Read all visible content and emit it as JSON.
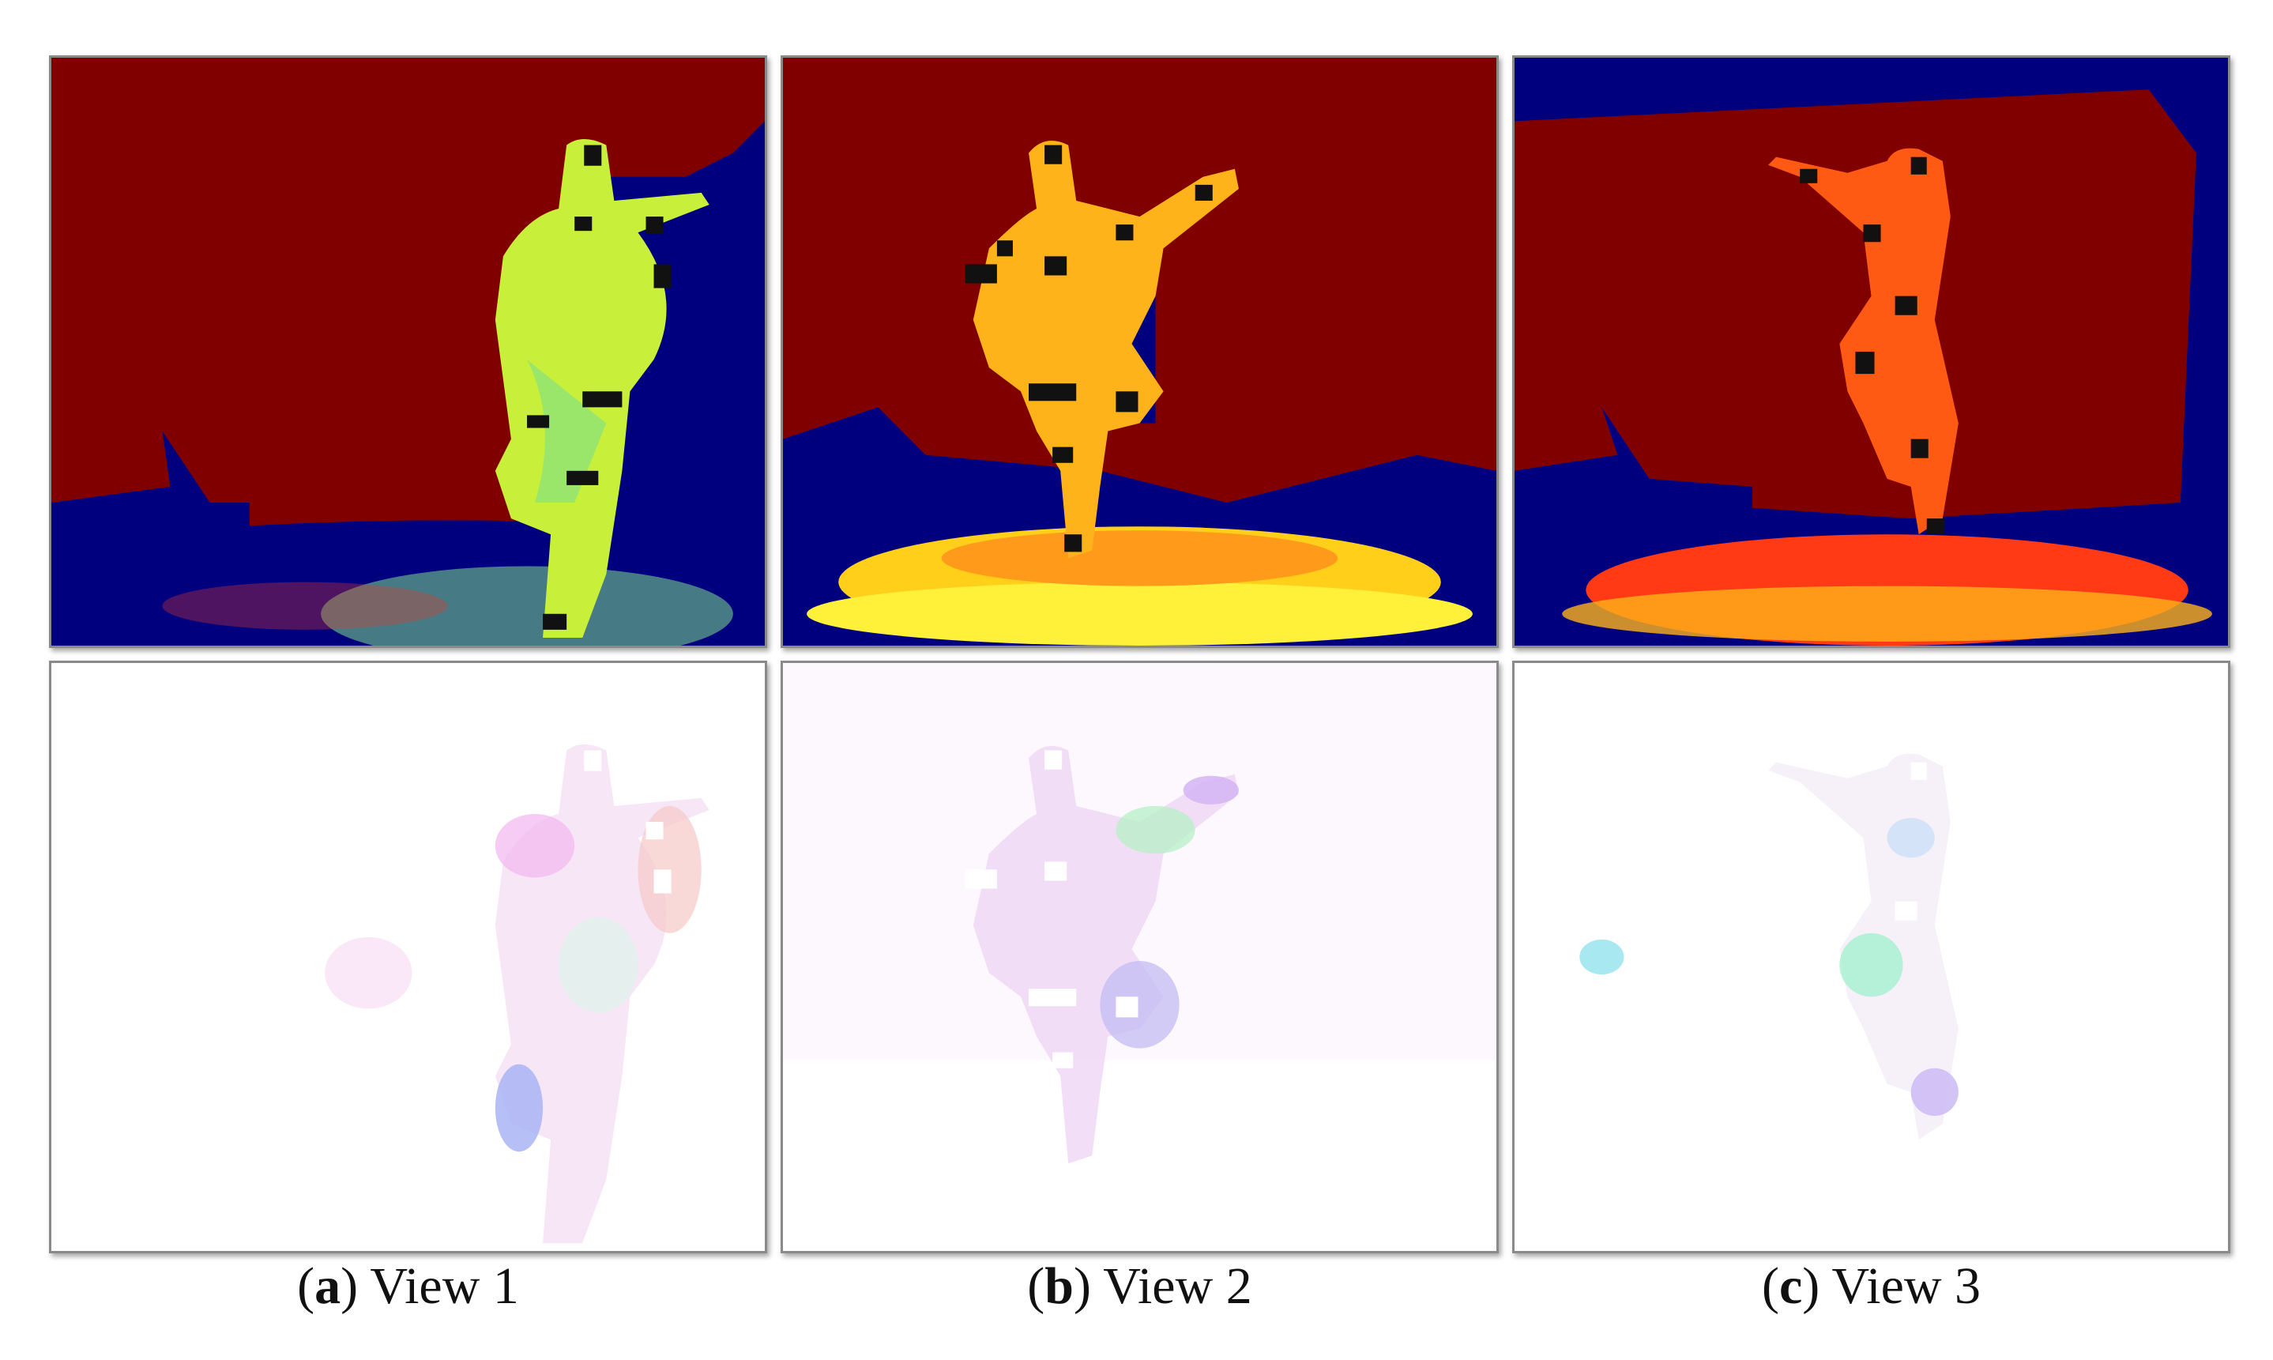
{
  "figure": {
    "columns": [
      {
        "letter": "a",
        "label": "View 1"
      },
      {
        "letter": "b",
        "label": "View 2"
      },
      {
        "letter": "c",
        "label": "View 3"
      }
    ],
    "rows": [
      "depth-map",
      "optical-flow"
    ],
    "colors": {
      "depth_far": "#800000",
      "depth_invalid": "#00007f",
      "view1_body": "#c8f03a",
      "view2_body": "#ffb31a",
      "view3_body": "#ff5a14",
      "marker": "#111111"
    }
  }
}
